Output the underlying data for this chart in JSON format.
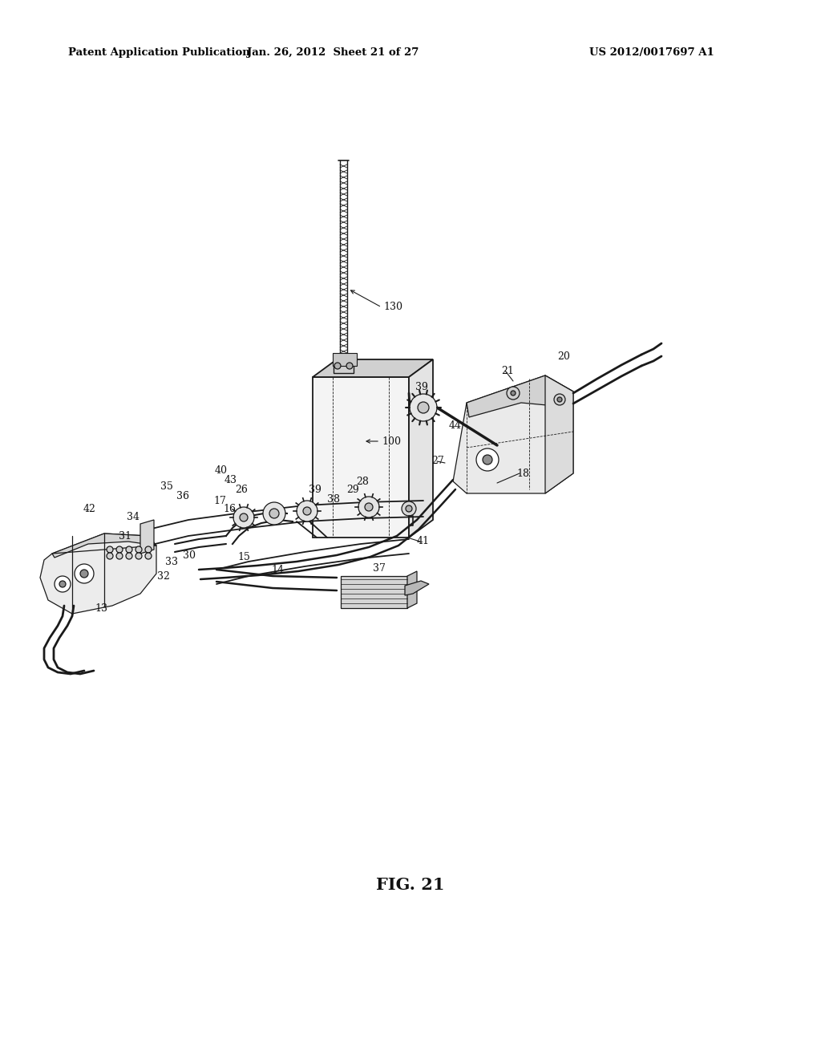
{
  "bg_color": "#ffffff",
  "header_left": "Patent Application Publication",
  "header_mid": "Jan. 26, 2012  Sheet 21 of 27",
  "header_right": "US 2012/0017697 A1",
  "fig_label": "FIG. 21",
  "header_fontsize": 9.5,
  "fig_label_fontsize": 15,
  "label_fontsize": 9,
  "line_color": "#1a1a1a",
  "lw_main": 1.3,
  "lw_thin": 0.9,
  "lw_thick": 2.0
}
